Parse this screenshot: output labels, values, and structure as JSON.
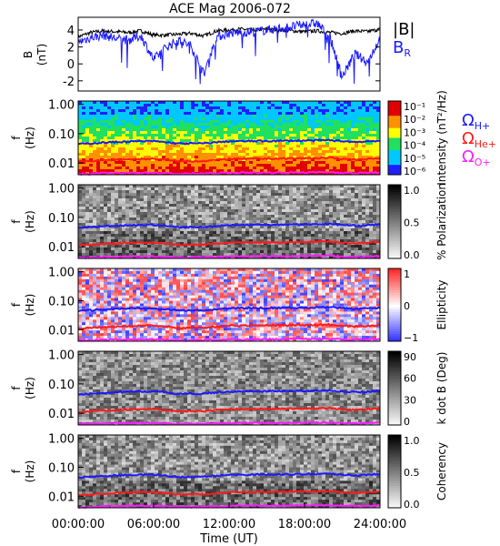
{
  "title": "ACE Mag 2006-072",
  "xlabel": "Time (UT)",
  "time_ticks": [
    "00:00:00",
    "06:00:00",
    "12:00:00",
    "18:00:00",
    "24:00:00"
  ],
  "freq_ticks": [
    "1.00",
    "0.10",
    "0.01"
  ],
  "freq_ylabel_top": "f",
  "freq_ylabel_bottom": "(Hz)",
  "legend": {
    "mag_labels": [
      {
        "text": "|B|",
        "color": "#000000"
      },
      {
        "text": "B",
        "sub": "R",
        "color": "#1a1aff"
      }
    ],
    "cyclotron": [
      {
        "text": "Ω",
        "sub": "H+",
        "color": "#1a1aff"
      },
      {
        "text": "Ω",
        "sub": "He+",
        "color": "#ff1a1a"
      },
      {
        "text": "Ω",
        "sub": "O+",
        "color": "#ff1aff"
      }
    ]
  },
  "colorbars": [
    {
      "label": "Intensity (nT²/Hz)",
      "ticks": [
        "10⁻¹",
        "10⁻²",
        "10⁻³",
        "10⁻⁴",
        "10⁻⁵",
        "10⁻⁶"
      ],
      "scheme": "rainbow"
    },
    {
      "label": "% Polarization",
      "ticks": [
        "1.0",
        "0.5",
        "0.0"
      ],
      "scheme": "gray"
    },
    {
      "label": "Ellipticity",
      "ticks": [
        "1",
        "0",
        "−1"
      ],
      "scheme": "bwr"
    },
    {
      "label": "k dot B (Deg)",
      "ticks": [
        "90",
        "60",
        "30",
        "0"
      ],
      "scheme": "gray"
    },
    {
      "label": "Coherency",
      "ticks": [
        "1.0",
        "0.5",
        "0.0"
      ],
      "scheme": "gray"
    }
  ],
  "chart_data": [
    {
      "type": "line",
      "title": "ACE Mag 2006-072",
      "ylabel": "B (nT)",
      "ylim": [
        -3.2,
        5.5
      ],
      "yticks": [
        -2,
        0,
        2,
        4
      ],
      "x_hours": [
        0,
        1,
        2,
        3,
        4,
        5,
        6,
        7,
        8,
        9,
        10,
        11,
        12,
        13,
        14,
        15,
        16,
        17,
        18,
        19,
        20,
        21,
        22,
        23,
        24
      ],
      "series": [
        {
          "name": "|B|",
          "color": "#000000",
          "values": [
            3.2,
            3.7,
            3.9,
            3.8,
            3.7,
            3.9,
            3.4,
            3.4,
            3.5,
            3.6,
            3.3,
            3.9,
            4.0,
            4.1,
            4.0,
            4.1,
            4.0,
            3.9,
            3.8,
            3.9,
            3.7,
            3.6,
            3.9,
            3.8,
            4.1
          ]
        },
        {
          "name": "B_R",
          "color": "#1a1aff",
          "values": [
            2.6,
            3.1,
            3.4,
            3.0,
            2.8,
            3.3,
            0.5,
            2.0,
            2.8,
            2.1,
            -1.2,
            3.2,
            3.6,
            3.7,
            3.8,
            4.0,
            4.2,
            4.4,
            4.6,
            4.8,
            3.2,
            -1.5,
            1.2,
            0.2,
            3.0
          ]
        }
      ]
    },
    {
      "type": "heatmap",
      "panel": "Intensity",
      "ylabel": "f (Hz)",
      "yscale": "log",
      "ylim": [
        0.004,
        1.3
      ],
      "x_hours": [
        0,
        2,
        4,
        6,
        8,
        10,
        12,
        14,
        16,
        18,
        20,
        22,
        24
      ],
      "cyclotron_lines_hz": {
        "H+": [
          0.044,
          0.05,
          0.054,
          0.056,
          0.046,
          0.047,
          0.055,
          0.056,
          0.057,
          0.058,
          0.06,
          0.052,
          0.058
        ],
        "He+": [
          0.011,
          0.0125,
          0.0135,
          0.014,
          0.0115,
          0.0118,
          0.0138,
          0.014,
          0.0142,
          0.0145,
          0.015,
          0.013,
          0.0145
        ],
        "O+": [
          0.0042,
          0.0045,
          0.0046,
          0.0047,
          0.0043,
          0.0044,
          0.0046,
          0.0047,
          0.0047,
          0.0048,
          0.0049,
          0.0045,
          0.0048
        ]
      }
    },
    {
      "type": "heatmap",
      "panel": "% Polarization",
      "ylabel": "f (Hz)",
      "yscale": "log",
      "ylim": [
        0.004,
        1.3
      ]
    },
    {
      "type": "heatmap",
      "panel": "Ellipticity",
      "ylabel": "f (Hz)",
      "yscale": "log",
      "ylim": [
        0.004,
        1.3
      ]
    },
    {
      "type": "heatmap",
      "panel": "k dot B",
      "ylabel": "f (Hz)",
      "yscale": "log",
      "ylim": [
        0.004,
        1.3
      ]
    },
    {
      "type": "heatmap",
      "panel": "Coherency",
      "ylabel": "f (Hz)",
      "yscale": "log",
      "ylim": [
        0.004,
        1.3
      ]
    }
  ]
}
